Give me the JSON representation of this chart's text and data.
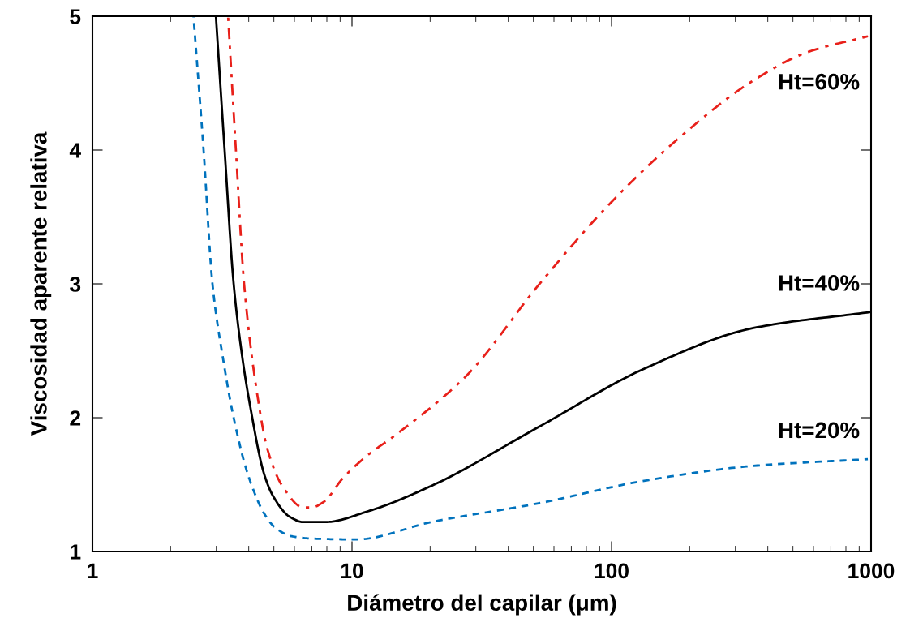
{
  "chart_data": {
    "type": "line",
    "xlabel": "Diámetro del capilar (μm)",
    "ylabel": "Viscosidad aparente relativa",
    "log": "x",
    "xlim": [
      1,
      1000
    ],
    "xticks": [
      1,
      10,
      100,
      1000
    ],
    "ylim": [
      1,
      5
    ],
    "yticks": [
      1,
      2,
      3,
      4,
      5
    ],
    "grid": false,
    "marker": "none",
    "series": [
      {
        "color": "#0072bd",
        "line_style": "dashed",
        "x": [
          2.45,
          2.68,
          2.9,
          3.18,
          3.5,
          3.98,
          4.6,
          5.05,
          5.83,
          6.92,
          10.4,
          20.2,
          52.3,
          135,
          352,
          972
        ],
        "values": [
          5,
          4.0,
          3.0,
          2.45,
          2.0,
          1.57,
          1.28,
          1.18,
          1.115,
          1.097,
          1.09,
          1.22,
          1.36,
          1.53,
          1.64,
          1.69
        ]
      },
      {
        "color": "#000000",
        "line_style": "solid",
        "x": [
          2.99,
          3.23,
          3.5,
          3.78,
          4.04,
          4.6,
          4.98,
          5.75,
          6.49,
          7.88,
          11.5,
          20.2,
          52.3,
          135,
          352,
          1000
        ],
        "values": [
          5,
          4.0,
          3.0,
          2.45,
          2.1,
          1.57,
          1.41,
          1.26,
          1.22,
          1.22,
          1.3,
          1.49,
          1.93,
          2.37,
          2.67,
          2.79
        ]
      },
      {
        "color": "#e8201a",
        "line_style": "dashdot",
        "x": [
          3.33,
          3.57,
          3.84,
          4.31,
          4.73,
          5.39,
          6.49,
          7.0,
          7.77,
          9.24,
          11.5,
          14.7,
          27.8,
          52.3,
          98.6,
          187,
          352,
          566,
          972
        ],
        "values": [
          5,
          4.0,
          3.0,
          2.18,
          1.76,
          1.49,
          1.33,
          1.33,
          1.37,
          1.55,
          1.72,
          1.87,
          2.32,
          2.99,
          3.6,
          4.11,
          4.52,
          4.73,
          4.85
        ]
      }
    ],
    "annotations": [
      "Ht=20%",
      "Ht=40%",
      "Ht=60%"
    ]
  }
}
